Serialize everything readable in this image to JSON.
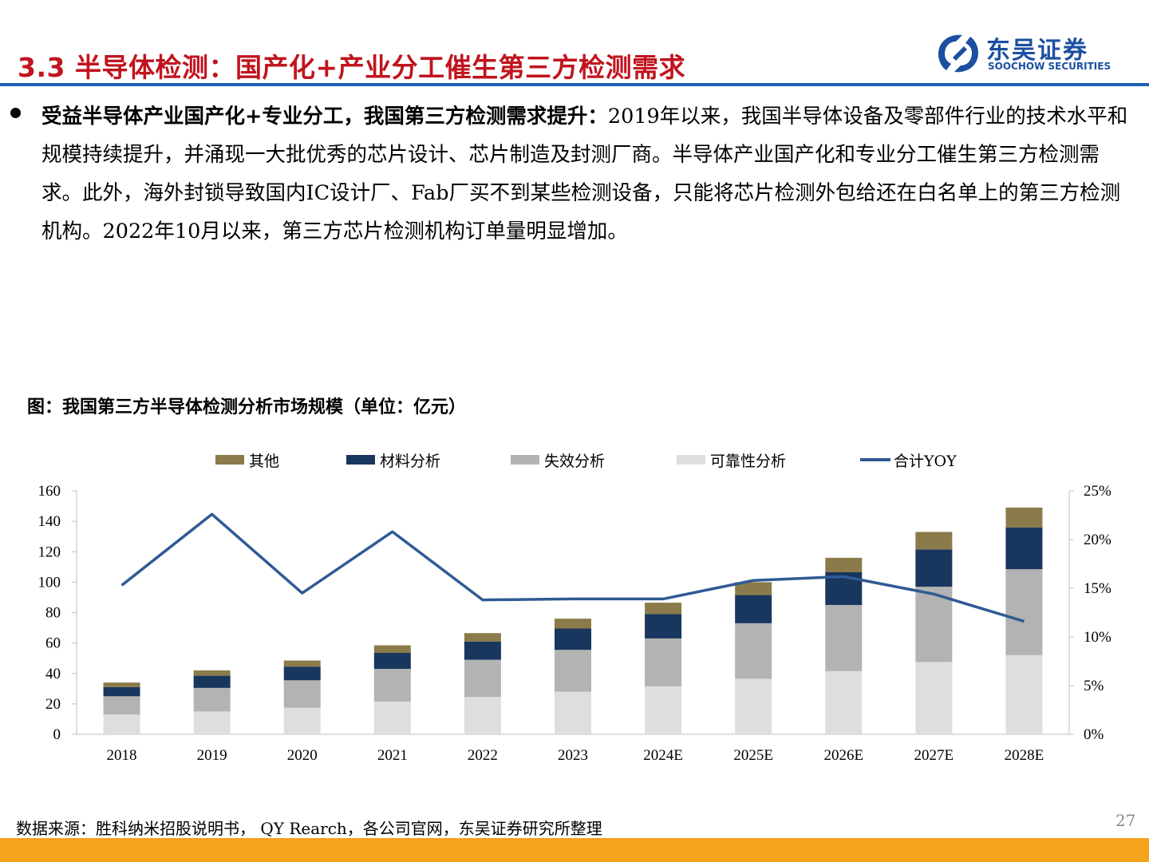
{
  "header": {
    "title": "3.3 半导体检测：国产化+产业分工催生第三方检测需求",
    "logo_cn": "东吴证券",
    "logo_en": "SOOCHOW SECURITIES"
  },
  "body": {
    "bold_lead": "受益半导体产业国产化+专业分工，我国第三方检测需求提升：",
    "text": "2019年以来，我国半导体设备及零部件行业的技术水平和规模持续提升，并涌现一大批优秀的芯片设计、芯片制造及封测厂商。半导体产业国产化和专业分工催生第三方检测需求。此外，海外封锁导致国内IC设计厂、Fab厂买不到某些检测设备，只能将芯片检测外包给还在白名单上的第三方检测机构。2022年10月以来，第三方芯片检测机构订单量明显增加。"
  },
  "chart_caption": "图：我国第三方半导体检测分析市场规模（单位：亿元）",
  "footer": {
    "source": "数据来源：胜科纳米招股说明书， QY Rearch，各公司官网，东吴证券研究所整理",
    "page": "27"
  },
  "chart_data": {
    "type": "bar",
    "stacked": true,
    "categories": [
      "2018",
      "2019",
      "2020",
      "2021",
      "2022",
      "2023",
      "2024E",
      "2025E",
      "2026E",
      "2027E",
      "2028E"
    ],
    "series": [
      {
        "name": "可靠性分析",
        "color": "#dedede",
        "values": [
          13,
          15,
          17.5,
          21.5,
          24.5,
          28,
          31.5,
          36.5,
          41.5,
          47.5,
          52
        ]
      },
      {
        "name": "失效分析",
        "color": "#b3b3b3",
        "values": [
          12,
          15.5,
          18,
          21.5,
          24.5,
          27.5,
          31.5,
          36.5,
          43.5,
          49.5,
          56.5
        ]
      },
      {
        "name": "材料分析",
        "color": "#18365e",
        "values": [
          6,
          8,
          9,
          10.5,
          12,
          14,
          16,
          18.5,
          21.5,
          24.5,
          27.5
        ]
      },
      {
        "name": "其他",
        "color": "#8b7b4b",
        "values": [
          3,
          3.5,
          4,
          5,
          5.5,
          6.5,
          7.5,
          8.5,
          9.5,
          11.5,
          13
        ]
      }
    ],
    "line": {
      "name": "合计YOY",
      "color": "#2f5a94",
      "axis": "right",
      "values": [
        15.3,
        22.6,
        14.5,
        20.8,
        13.8,
        13.9,
        13.9,
        15.8,
        16.2,
        14.4,
        11.6
      ]
    },
    "legend_order": [
      "其他",
      "材料分析",
      "失效分析",
      "可靠性分析",
      "合计YOY"
    ],
    "ylim": [
      0,
      160
    ],
    "yticks": [
      0,
      20,
      40,
      60,
      80,
      100,
      120,
      140,
      160
    ],
    "y2lim": [
      0,
      25
    ],
    "y2ticks": [
      "0%",
      "5%",
      "10%",
      "15%",
      "20%",
      "25%"
    ],
    "legend_position": "top",
    "grid": false
  }
}
